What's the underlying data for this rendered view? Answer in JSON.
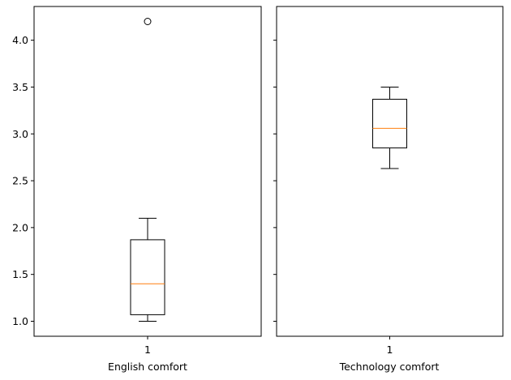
{
  "chart_data": [
    {
      "type": "box",
      "xlabel": "English comfort",
      "categories": [
        "1"
      ],
      "ylim": [
        0.84,
        4.36
      ],
      "yticks": [
        1.0,
        1.5,
        2.0,
        2.5,
        3.0,
        3.5,
        4.0
      ],
      "ytick_labels": [
        "1.0",
        "1.5",
        "2.0",
        "2.5",
        "3.0",
        "3.5",
        "4.0"
      ],
      "box": {
        "whisker_low": 1.0,
        "q1": 1.07,
        "median": 1.4,
        "q3": 1.87,
        "whisker_high": 2.1,
        "outliers": [
          4.2
        ]
      }
    },
    {
      "type": "box",
      "xlabel": "Technology comfort",
      "categories": [
        "1"
      ],
      "ylim": [
        0.84,
        4.36
      ],
      "shared_y": true,
      "box": {
        "whisker_low": 2.63,
        "q1": 2.85,
        "median": 3.06,
        "q3": 3.37,
        "whisker_high": 3.5,
        "outliers": []
      }
    }
  ],
  "colors": {
    "box": "#000000",
    "median": "#ff7f0e",
    "background": "#ffffff"
  }
}
